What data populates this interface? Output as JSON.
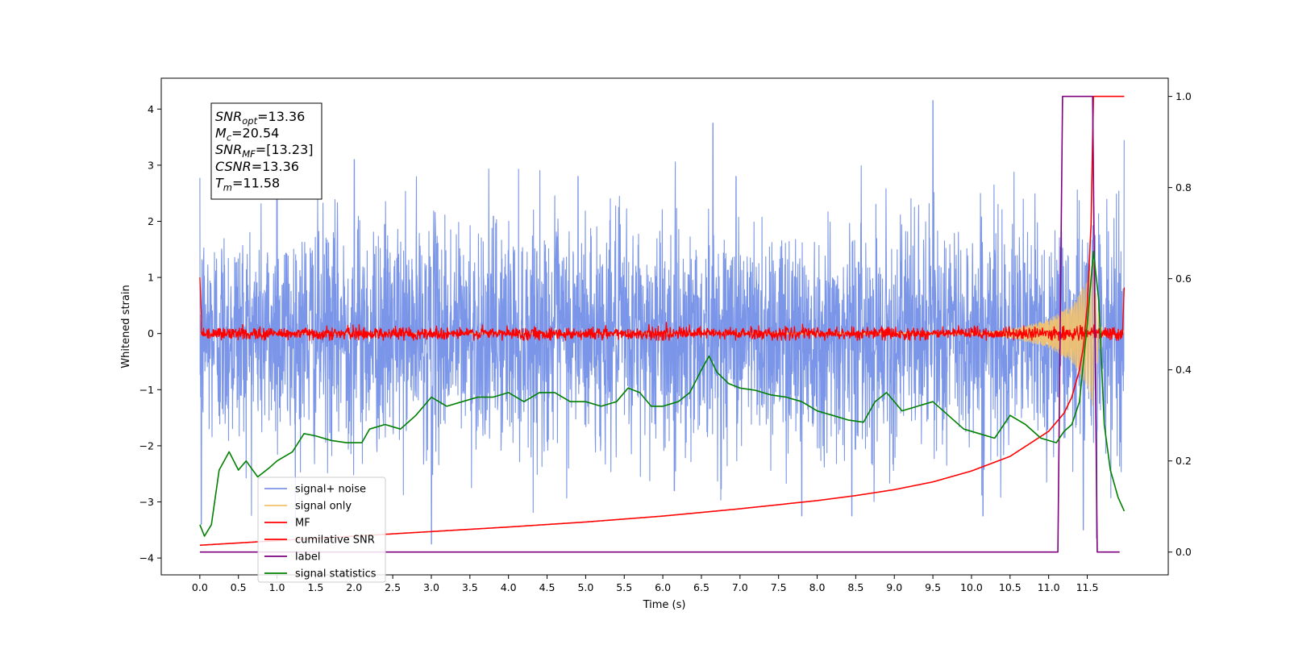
{
  "chart_data": {
    "type": "line",
    "xlabel": "Time (s)",
    "ylabel": "Whitened strain",
    "xlim": [
      -0.5,
      12.55
    ],
    "ylim": [
      -4.3,
      4.55
    ],
    "ylim_right": [
      -0.05,
      1.04
    ],
    "x_ticks": [
      "0.0",
      "0.5",
      "1.0",
      "1.5",
      "2.0",
      "2.5",
      "3.0",
      "3.5",
      "4.0",
      "4.5",
      "5.0",
      "5.5",
      "6.0",
      "6.5",
      "7.0",
      "7.5",
      "8.0",
      "8.5",
      "9.0",
      "9.5",
      "10.0",
      "10.5",
      "11.0",
      "11.5"
    ],
    "y_ticks_left": [
      "4",
      "3",
      "2",
      "1",
      "0",
      "−1",
      "−2",
      "−3",
      "−4"
    ],
    "y_ticks_right": [
      "1.0",
      "0.8",
      "0.6",
      "0.4",
      "0.2",
      "0.0"
    ],
    "grid": false,
    "legend_position": "lower-left",
    "annotation": {
      "lines": [
        {
          "sym": "SNR",
          "sub": "opt",
          "value": "=13.36"
        },
        {
          "sym": "M",
          "sub": "c",
          "value": "=20.54"
        },
        {
          "sym": "SNR",
          "sub": "MF",
          "value": "=[13.23]"
        },
        {
          "sym": "CSNR",
          "sub": "",
          "value": "=13.36"
        },
        {
          "sym": "T",
          "sub": "m",
          "value": "=11.58"
        }
      ]
    },
    "series": [
      {
        "name": "signal+ noise",
        "color": "#7b96e8",
        "axis": "left",
        "x_range": [
          0.0,
          11.98
        ],
        "noise_std": 1.0,
        "peaks": [
          [
            0.02,
            2.6
          ],
          [
            0.02,
            -3.4
          ],
          [
            1.0,
            2.6
          ],
          [
            2.0,
            3.1
          ],
          [
            3.0,
            -3.75
          ],
          [
            4.9,
            2.8
          ],
          [
            6.15,
            -2.8
          ],
          [
            6.65,
            3.75
          ],
          [
            6.95,
            2.8
          ],
          [
            7.8,
            -3.25
          ],
          [
            8.45,
            -3.25
          ],
          [
            9.5,
            4.15
          ],
          [
            10.15,
            -3.25
          ],
          [
            11.45,
            -3.5
          ],
          [
            11.62,
            -3.65
          ],
          [
            11.98,
            3.45
          ]
        ]
      },
      {
        "name": "signal only",
        "color": "#f5c36b",
        "axis": "left",
        "x_range": [
          0.0,
          11.98
        ],
        "envelope": [
          [
            10.2,
            0.02
          ],
          [
            10.6,
            0.1
          ],
          [
            11.0,
            0.25
          ],
          [
            11.3,
            0.5
          ],
          [
            11.5,
            0.95
          ],
          [
            11.58,
            1.35
          ],
          [
            11.62,
            0.6
          ],
          [
            11.7,
            0.05
          ]
        ]
      },
      {
        "name": "MF",
        "color": "#ff0000",
        "axis": "left",
        "x_range": [
          0.0,
          11.98
        ],
        "noise_std": 0.055,
        "points": [
          [
            0.0,
            1.0
          ],
          [
            0.02,
            0.3
          ],
          [
            11.96,
            0.1
          ],
          [
            11.98,
            0.82
          ]
        ]
      },
      {
        "name": "cumilative SNR",
        "color": "#ff0000",
        "axis": "right",
        "points": [
          [
            0.0,
            0.015
          ],
          [
            0.5,
            0.02
          ],
          [
            1.0,
            0.025
          ],
          [
            2.0,
            0.035
          ],
          [
            3.0,
            0.045
          ],
          [
            4.0,
            0.055
          ],
          [
            5.0,
            0.066
          ],
          [
            6.0,
            0.079
          ],
          [
            7.0,
            0.095
          ],
          [
            8.0,
            0.113
          ],
          [
            8.5,
            0.124
          ],
          [
            9.0,
            0.137
          ],
          [
            9.5,
            0.154
          ],
          [
            10.0,
            0.178
          ],
          [
            10.5,
            0.21
          ],
          [
            11.0,
            0.265
          ],
          [
            11.2,
            0.305
          ],
          [
            11.3,
            0.34
          ],
          [
            11.4,
            0.4
          ],
          [
            11.45,
            0.45
          ],
          [
            11.5,
            0.54
          ],
          [
            11.55,
            0.72
          ],
          [
            11.58,
            1.0
          ],
          [
            11.98,
            1.0
          ]
        ]
      },
      {
        "name": "label",
        "color": "#800080",
        "axis": "right",
        "points": [
          [
            0.0,
            0.0
          ],
          [
            11.12,
            0.0
          ],
          [
            11.18,
            1.0
          ],
          [
            11.57,
            1.0
          ],
          [
            11.63,
            0.0
          ],
          [
            11.92,
            0.0
          ]
        ]
      },
      {
        "name": "signal statistics",
        "color": "#008000",
        "axis": "right",
        "points": [
          [
            0.0,
            0.06
          ],
          [
            0.06,
            0.035
          ],
          [
            0.15,
            0.06
          ],
          [
            0.25,
            0.18
          ],
          [
            0.38,
            0.22
          ],
          [
            0.5,
            0.18
          ],
          [
            0.6,
            0.2
          ],
          [
            0.75,
            0.165
          ],
          [
            0.9,
            0.185
          ],
          [
            1.0,
            0.2
          ],
          [
            1.2,
            0.22
          ],
          [
            1.35,
            0.26
          ],
          [
            1.5,
            0.255
          ],
          [
            1.7,
            0.245
          ],
          [
            1.9,
            0.24
          ],
          [
            2.1,
            0.24
          ],
          [
            2.2,
            0.27
          ],
          [
            2.4,
            0.28
          ],
          [
            2.6,
            0.27
          ],
          [
            2.8,
            0.3
          ],
          [
            3.0,
            0.34
          ],
          [
            3.2,
            0.32
          ],
          [
            3.4,
            0.33
          ],
          [
            3.6,
            0.34
          ],
          [
            3.8,
            0.34
          ],
          [
            4.0,
            0.35
          ],
          [
            4.2,
            0.33
          ],
          [
            4.4,
            0.35
          ],
          [
            4.6,
            0.35
          ],
          [
            4.8,
            0.33
          ],
          [
            5.0,
            0.33
          ],
          [
            5.2,
            0.32
          ],
          [
            5.4,
            0.33
          ],
          [
            5.55,
            0.36
          ],
          [
            5.7,
            0.35
          ],
          [
            5.85,
            0.32
          ],
          [
            6.0,
            0.32
          ],
          [
            6.2,
            0.33
          ],
          [
            6.35,
            0.35
          ],
          [
            6.5,
            0.4
          ],
          [
            6.6,
            0.43
          ],
          [
            6.7,
            0.395
          ],
          [
            6.85,
            0.37
          ],
          [
            7.0,
            0.36
          ],
          [
            7.2,
            0.355
          ],
          [
            7.4,
            0.345
          ],
          [
            7.6,
            0.34
          ],
          [
            7.8,
            0.33
          ],
          [
            8.0,
            0.31
          ],
          [
            8.2,
            0.3
          ],
          [
            8.4,
            0.29
          ],
          [
            8.6,
            0.285
          ],
          [
            8.75,
            0.33
          ],
          [
            8.9,
            0.35
          ],
          [
            9.1,
            0.31
          ],
          [
            9.3,
            0.32
          ],
          [
            9.5,
            0.33
          ],
          [
            9.7,
            0.3
          ],
          [
            9.9,
            0.27
          ],
          [
            10.1,
            0.26
          ],
          [
            10.3,
            0.25
          ],
          [
            10.5,
            0.3
          ],
          [
            10.7,
            0.28
          ],
          [
            10.9,
            0.25
          ],
          [
            11.1,
            0.24
          ],
          [
            11.2,
            0.265
          ],
          [
            11.3,
            0.28
          ],
          [
            11.4,
            0.33
          ],
          [
            11.5,
            0.5
          ],
          [
            11.58,
            0.66
          ],
          [
            11.65,
            0.55
          ],
          [
            11.72,
            0.28
          ],
          [
            11.8,
            0.18
          ],
          [
            11.9,
            0.12
          ],
          [
            11.98,
            0.09
          ]
        ]
      }
    ]
  }
}
